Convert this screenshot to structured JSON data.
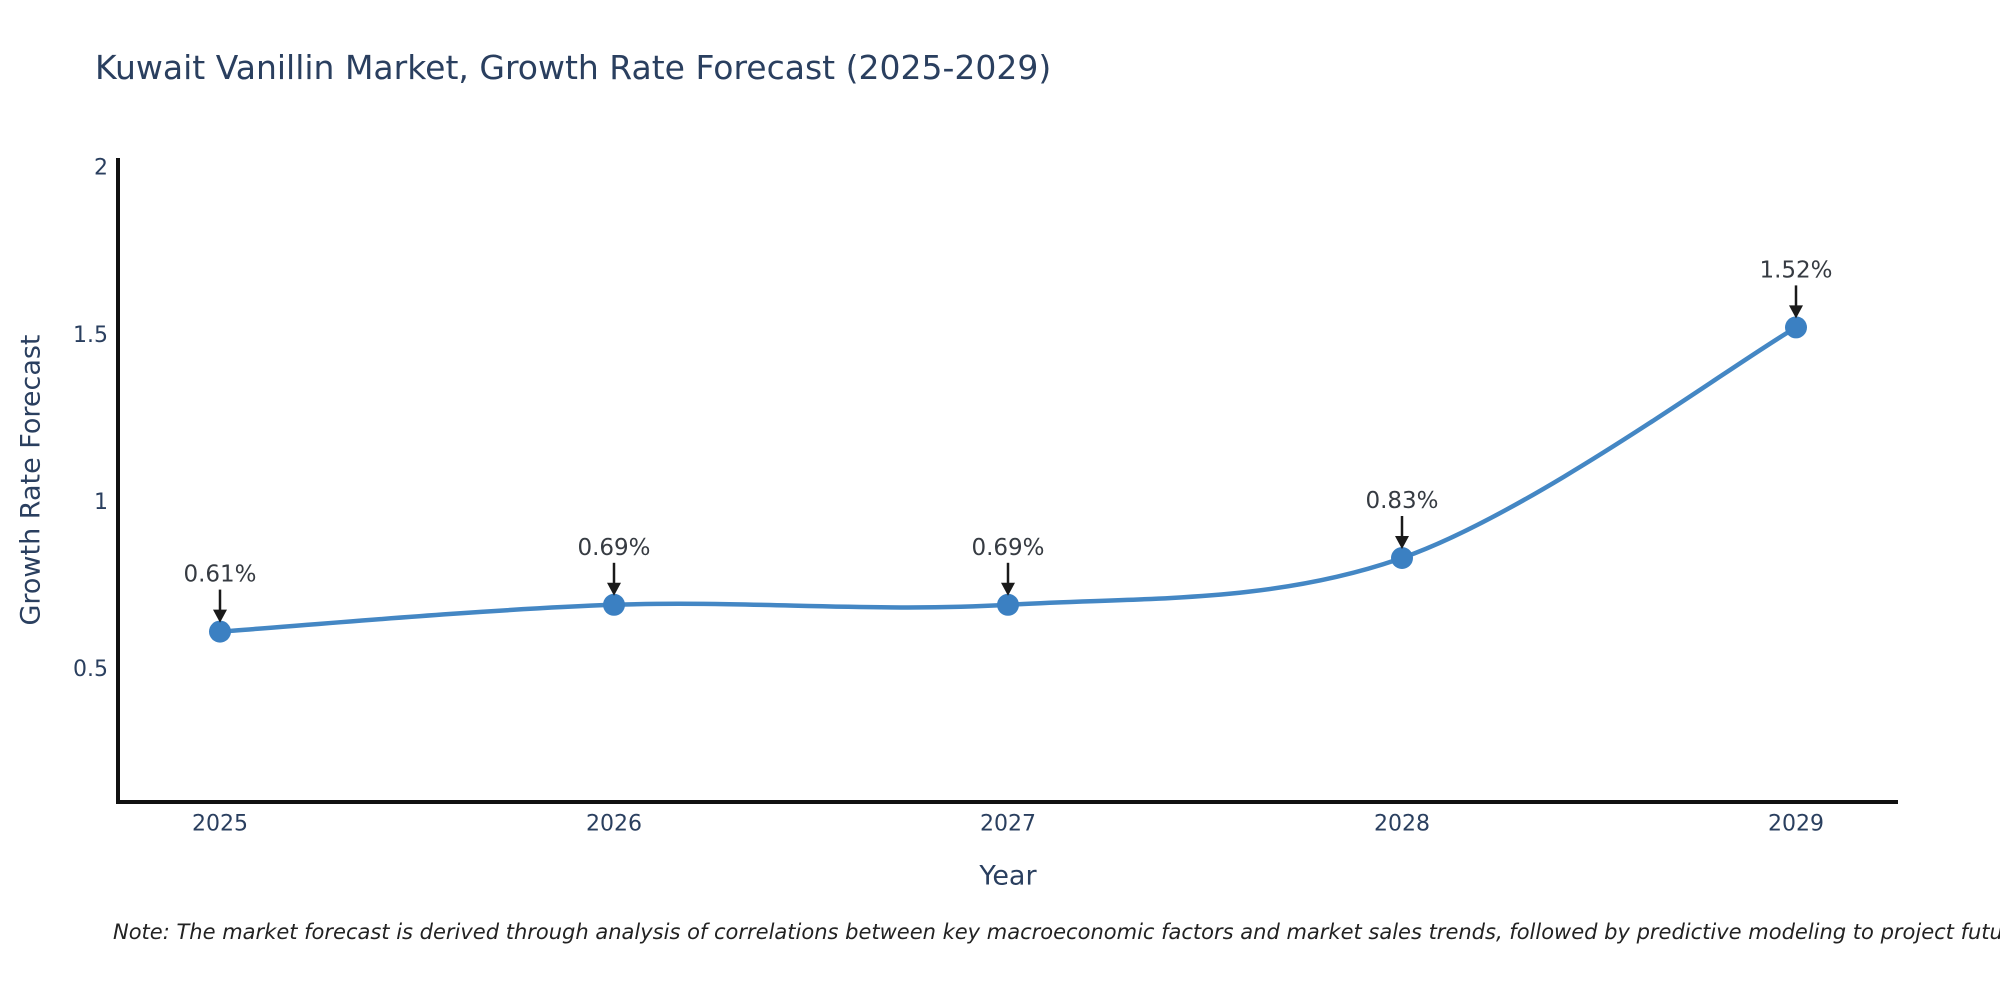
{
  "title": "Kuwait Vanillin Market, Growth Rate Forecast (2025-2029)",
  "note": "Note: The market forecast is derived through analysis of correlations between key macroeconomic factors and market sales trends, followed by predictive modeling to project future sales",
  "chart_data": {
    "type": "line",
    "x": [
      "2025",
      "2026",
      "2027",
      "2028",
      "2029"
    ],
    "series": [
      {
        "name": "Growth Rate Forecast",
        "values": [
          0.61,
          0.69,
          0.69,
          0.83,
          1.52
        ]
      }
    ],
    "point_labels": [
      "0.61%",
      "0.69%",
      "0.69%",
      "0.83%",
      "1.52%"
    ],
    "xlabel": "Year",
    "ylabel": "Growth Rate Forecast",
    "yticks": {
      "labels": [
        "0.5",
        "1",
        "1.5",
        "2"
      ],
      "values": [
        0.5,
        1,
        1.5,
        2
      ]
    },
    "ylim": [
      0.1,
      2.027
    ],
    "line_shape": "spline",
    "grid": false,
    "legend": "none",
    "annotations_above_points": true,
    "colors": {
      "line": "#4487c4",
      "marker": "#3b80c2",
      "axis": "#111111",
      "text": "#2a3f5f",
      "annotation": "#363b42",
      "arrow": "#1a1a1a",
      "background": "#ffffff"
    }
  }
}
